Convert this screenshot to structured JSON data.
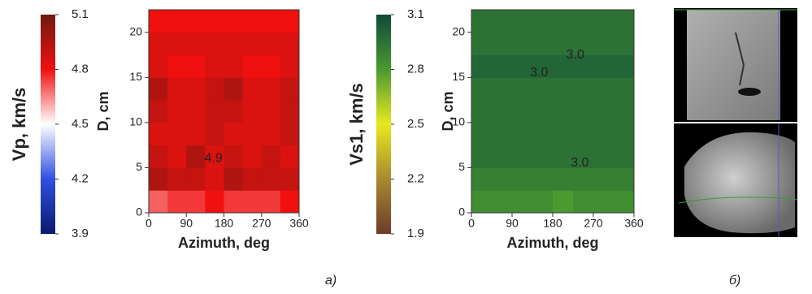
{
  "chart_data": [
    {
      "type": "heatmap",
      "xlabel": "Azimuth, deg",
      "ylabel": "D, cm",
      "zlabel": "Vp, km/s",
      "x": [
        22.5,
        67.5,
        112.5,
        157.5,
        202.5,
        247.5,
        292.5,
        337.5
      ],
      "y": [
        1.25,
        3.75,
        6.25,
        8.75,
        11.25,
        13.75,
        16.25,
        18.75,
        21.25
      ],
      "z": [
        [
          4.7,
          4.75,
          4.75,
          4.8,
          4.75,
          4.75,
          4.75,
          4.8
        ],
        [
          4.95,
          4.9,
          4.9,
          4.85,
          4.95,
          4.9,
          4.9,
          4.9
        ],
        [
          4.9,
          4.85,
          4.95,
          4.85,
          4.9,
          4.85,
          4.9,
          4.85
        ],
        [
          4.85,
          4.85,
          4.85,
          4.9,
          4.85,
          4.85,
          4.85,
          4.9
        ],
        [
          4.9,
          4.85,
          4.85,
          4.9,
          4.9,
          4.85,
          4.85,
          4.9
        ],
        [
          4.95,
          4.85,
          4.85,
          4.9,
          4.95,
          4.85,
          4.85,
          4.9
        ],
        [
          4.85,
          4.8,
          4.8,
          4.85,
          4.85,
          4.8,
          4.8,
          4.85
        ],
        [
          4.85,
          4.85,
          4.85,
          4.85,
          4.85,
          4.85,
          4.85,
          4.85
        ],
        [
          4.8,
          4.8,
          4.8,
          4.8,
          4.8,
          4.8,
          4.8,
          4.8
        ]
      ],
      "xlim": [
        0,
        360
      ],
      "xticks": [
        0,
        90,
        180,
        270,
        360
      ],
      "ylim": [
        0,
        22.5
      ],
      "yticks": [
        0,
        5,
        10,
        15,
        20
      ],
      "zlim": [
        3.9,
        5.1
      ],
      "zticks": [
        3.9,
        4.2,
        4.5,
        4.8,
        5.1
      ],
      "colorscale": [
        "#0a1a6e",
        "#3050e0",
        "#ffffff",
        "#f01010",
        "#6e1a10"
      ],
      "annotations": [
        {
          "text": "4.9",
          "x": 155,
          "y": 6
        }
      ]
    },
    {
      "type": "heatmap",
      "xlabel": "Azimuth, deg",
      "ylabel": "D, cm",
      "zlabel": "Vs1, km/s",
      "x": [
        22.5,
        67.5,
        112.5,
        157.5,
        202.5,
        247.5,
        292.5,
        337.5
      ],
      "y": [
        1.25,
        3.75,
        6.25,
        8.75,
        11.25,
        13.75,
        16.25,
        18.75,
        21.25
      ],
      "z": [
        [
          2.85,
          2.85,
          2.85,
          2.85,
          2.8,
          2.85,
          2.85,
          2.85
        ],
        [
          2.9,
          2.9,
          2.9,
          2.9,
          2.9,
          2.9,
          2.9,
          2.9
        ],
        [
          2.95,
          2.95,
          2.95,
          2.95,
          2.95,
          2.95,
          2.95,
          2.95
        ],
        [
          2.95,
          2.95,
          2.95,
          2.95,
          2.95,
          2.95,
          2.95,
          2.95
        ],
        [
          2.95,
          2.95,
          2.95,
          2.95,
          2.95,
          2.95,
          2.95,
          2.95
        ],
        [
          2.95,
          2.95,
          2.95,
          2.95,
          2.95,
          2.95,
          2.95,
          2.95
        ],
        [
          3.0,
          3.0,
          3.0,
          3.0,
          3.0,
          3.0,
          3.0,
          3.0
        ],
        [
          2.95,
          2.95,
          2.95,
          2.95,
          2.95,
          2.95,
          2.95,
          2.95
        ],
        [
          2.95,
          2.95,
          2.95,
          2.95,
          2.95,
          2.95,
          2.95,
          2.95
        ]
      ],
      "xlim": [
        0,
        360
      ],
      "xticks": [
        0,
        90,
        180,
        270,
        360
      ],
      "ylim": [
        0,
        22.5
      ],
      "yticks": [
        0,
        5,
        10,
        15,
        20
      ],
      "zlim": [
        1.9,
        3.1
      ],
      "zticks": [
        1.9,
        2.2,
        2.5,
        2.8,
        3.1
      ],
      "colorscale": [
        "#6e3a2a",
        "#a88a30",
        "#e8e820",
        "#4a9a30",
        "#0e4a3a"
      ],
      "annotations": [
        {
          "text": "3.0",
          "x": 150,
          "y": 15.5
        },
        {
          "text": "3.0",
          "x": 230,
          "y": 17.5
        },
        {
          "text": "3.0",
          "x": 240,
          "y": 5.5
        }
      ]
    }
  ],
  "panel_labels": [
    "а)",
    "б)"
  ]
}
